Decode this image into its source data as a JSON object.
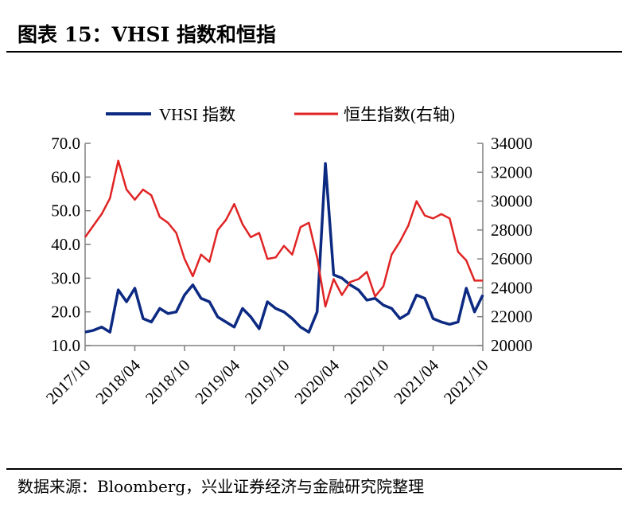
{
  "title": "图表 15：VHSI 指数和恒指",
  "source": "数据来源：Bloomberg，兴业证券经济与金融研究院整理",
  "chart_data": {
    "type": "line",
    "title": "",
    "legend_position": "top",
    "grid": false,
    "x_tick_labels": [
      "2017/10",
      "2018/04",
      "2018/10",
      "2019/04",
      "2019/10",
      "2020/04",
      "2020/10",
      "2021/04",
      "2021/10"
    ],
    "x": [
      "2017-10",
      "2017-11",
      "2017-12",
      "2018-01",
      "2018-02",
      "2018-03",
      "2018-04",
      "2018-05",
      "2018-06",
      "2018-07",
      "2018-08",
      "2018-09",
      "2018-10",
      "2018-11",
      "2018-12",
      "2019-01",
      "2019-02",
      "2019-03",
      "2019-04",
      "2019-05",
      "2019-06",
      "2019-07",
      "2019-08",
      "2019-09",
      "2019-10",
      "2019-11",
      "2019-12",
      "2020-01",
      "2020-02",
      "2020-03",
      "2020-04",
      "2020-05",
      "2020-06",
      "2020-07",
      "2020-08",
      "2020-09",
      "2020-10",
      "2020-11",
      "2020-12",
      "2021-01",
      "2021-02",
      "2021-03",
      "2021-04",
      "2021-05",
      "2021-06",
      "2021-07",
      "2021-08",
      "2021-09",
      "2021-10"
    ],
    "left_axis": {
      "ylim": [
        10,
        70
      ],
      "ticks": [
        "10.0",
        "20.0",
        "30.0",
        "40.0",
        "50.0",
        "60.0",
        "70.0"
      ]
    },
    "right_axis": {
      "ylim": [
        20000,
        34000
      ],
      "ticks": [
        "20000",
        "22000",
        "24000",
        "26000",
        "28000",
        "30000",
        "32000",
        "34000"
      ]
    },
    "series": [
      {
        "name": "VHSI 指数",
        "axis": "left",
        "color": "#0d2a82",
        "values": [
          14,
          14.5,
          15.5,
          14,
          26.5,
          23,
          27,
          18,
          17,
          21,
          19.5,
          20,
          25,
          28,
          24,
          23,
          18.5,
          17,
          15.5,
          21,
          18.5,
          15,
          23,
          21,
          20,
          18,
          15.5,
          14,
          20,
          64,
          31,
          30,
          28,
          26.5,
          23.5,
          24,
          22,
          21,
          18,
          19.5,
          25,
          24,
          18,
          17,
          16.3,
          17,
          27,
          20,
          25
        ]
      },
      {
        "name": "恒生指数(右轴)",
        "axis": "right",
        "color": "#e02424",
        "values": [
          27500,
          28300,
          29100,
          30200,
          32800,
          30800,
          30100,
          30800,
          30400,
          28900,
          28500,
          27800,
          26000,
          24800,
          26300,
          25800,
          28000,
          28700,
          29800,
          28400,
          27500,
          27800,
          26000,
          26100,
          26900,
          26300,
          28200,
          28500,
          26100,
          22700,
          24600,
          23500,
          24400,
          24600,
          25100,
          23400,
          24100,
          26300,
          27200,
          28300,
          30000,
          29000,
          28800,
          29100,
          28800,
          26500,
          25900,
          24500,
          24500
        ]
      }
    ]
  }
}
